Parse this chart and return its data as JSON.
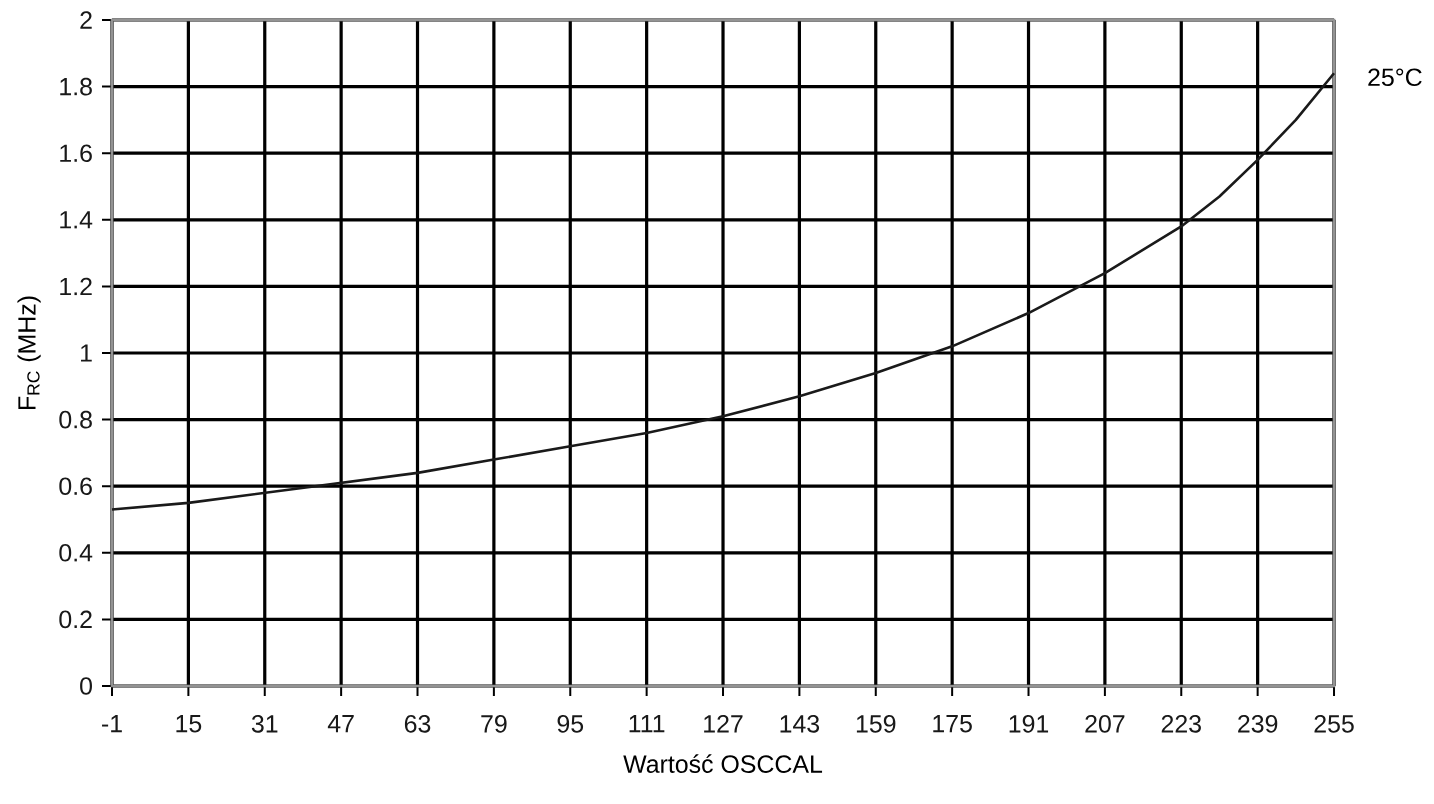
{
  "chart_data": {
    "type": "line",
    "xlabel": "Wartość OSCCAL",
    "ylabel": "F$_{RC}$ (MHz)",
    "x": [
      -1,
      15,
      31,
      47,
      63,
      79,
      95,
      111,
      127,
      143,
      159,
      175,
      191,
      207,
      215,
      223,
      231,
      239,
      247,
      255
    ],
    "series": [
      {
        "name": "25°C",
        "color": "#1a1a1a",
        "values": [
          0.53,
          0.55,
          0.58,
          0.61,
          0.64,
          0.68,
          0.72,
          0.76,
          0.81,
          0.87,
          0.94,
          1.02,
          1.12,
          1.24,
          1.31,
          1.38,
          1.47,
          1.58,
          1.7,
          1.84
        ]
      }
    ],
    "xlim": [
      -1,
      255
    ],
    "xticks": [
      -1,
      15,
      31,
      47,
      63,
      79,
      95,
      111,
      127,
      143,
      159,
      175,
      191,
      207,
      223,
      239,
      255
    ],
    "ylim": [
      0,
      2
    ],
    "yticks": [
      0,
      0.2,
      0.4,
      0.6,
      0.8,
      1,
      1.2,
      1.4,
      1.6,
      1.8,
      2
    ],
    "grid": true,
    "marker": "none",
    "line_style": "solid"
  }
}
